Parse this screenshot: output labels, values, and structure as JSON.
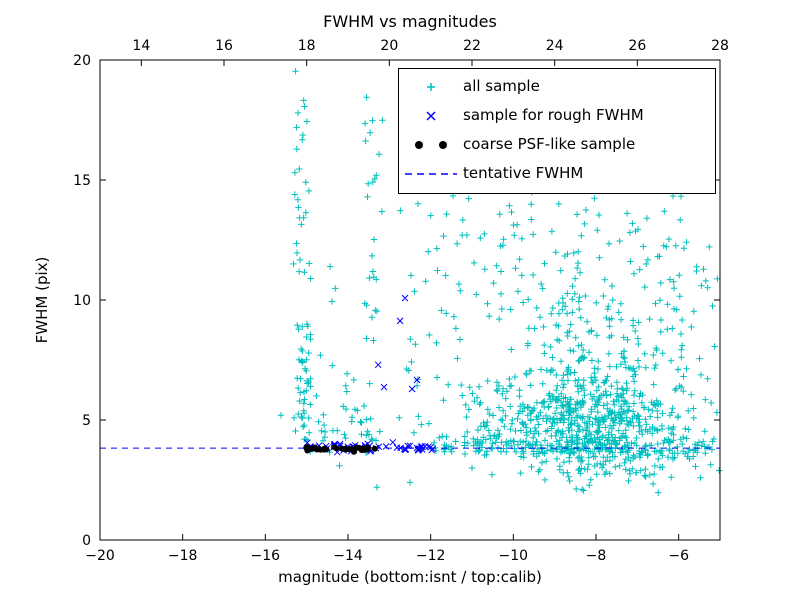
{
  "title": "FWHM vs magnitudes",
  "axes": {
    "xlabel": "magnitude (bottom:isnt / top:calib)",
    "ylabel": "FWHM (pix)",
    "x_bottom": {
      "min": -20,
      "max": -5,
      "ticks": [
        -20,
        -18,
        -16,
        -14,
        -12,
        -10,
        -8,
        -6
      ],
      "labels": [
        "−20",
        "−18",
        "−16",
        "−14",
        "−12",
        "−10",
        "−8",
        "−6"
      ]
    },
    "x_top": {
      "min": 13,
      "max": 28,
      "ticks": [
        14,
        16,
        18,
        20,
        22,
        24,
        26,
        28
      ],
      "labels": [
        "14",
        "16",
        "18",
        "20",
        "22",
        "24",
        "26",
        "28"
      ]
    },
    "y": {
      "min": 0,
      "max": 20,
      "ticks": [
        0,
        5,
        10,
        15,
        20
      ],
      "labels": [
        "0",
        "5",
        "10",
        "15",
        "20"
      ]
    }
  },
  "legend": {
    "entries": [
      {
        "label": "all sample",
        "marker": "plus",
        "color": "#00bfbf"
      },
      {
        "label": "sample for rough FWHM",
        "marker": "x",
        "color": "#0000ff"
      },
      {
        "label": "coarse PSF-like sample",
        "marker": "dot",
        "color": "#000000"
      },
      {
        "label": "tentative FWHM",
        "marker": "dashed-line",
        "color": "#0000ff"
      }
    ]
  },
  "chart_data": {
    "type": "scatter",
    "title": "FWHM vs magnitudes",
    "xlabel": "magnitude (bottom:isnt / top:calib)",
    "ylabel": "FWHM (pix)",
    "xlim_bottom": [
      -20,
      -5
    ],
    "xlim_top": [
      13,
      28
    ],
    "ylim": [
      0,
      20
    ],
    "tentative_fwhm": 3.83,
    "seed": 42,
    "series": [
      {
        "name": "all sample",
        "marker": "plus",
        "color": "#00bfbf",
        "clusters": [
          {
            "dist": "uniform",
            "n": 42,
            "x": [
              -15.32,
              -14.88
            ],
            "y": [
              4.3,
              19.6
            ]
          },
          {
            "dist": "gauss",
            "n": 30,
            "cx": -15.08,
            "sx": 0.1,
            "cy": 7.0,
            "sy": 1.3
          },
          {
            "dist": "uniform",
            "n": 30,
            "x": [
              -13.62,
              -13.15
            ],
            "y": [
              4.3,
              19.3
            ]
          },
          {
            "dist": "band",
            "n": 36,
            "x": [
              -15.1,
              -13.2
            ],
            "cy": 4.7,
            "sy": 0.7
          },
          {
            "dist": "band",
            "n": 55,
            "x": [
              -12.0,
              -9.6
            ],
            "cy": 3.9,
            "sy": 0.18
          },
          {
            "dist": "band",
            "n": 120,
            "x": [
              -9.6,
              -5.1
            ],
            "cy": 3.85,
            "sy": 0.22
          },
          {
            "dist": "gauss",
            "n": 500,
            "cx": -8.2,
            "sx": 1.05,
            "cy": 4.9,
            "sy": 1.05
          },
          {
            "dist": "gauss",
            "n": 170,
            "cx": -8.0,
            "sx": 1.25,
            "cy": 7.6,
            "sy": 1.7
          },
          {
            "dist": "uniform",
            "n": 110,
            "x": [
              -10.8,
              -5.9
            ],
            "y": [
              8.6,
              15.4
            ]
          },
          {
            "dist": "uniform",
            "n": 48,
            "x": [
              -12.8,
              -10.6
            ],
            "y": [
              4.2,
              14.5
            ]
          },
          {
            "dist": "gauss",
            "n": 55,
            "cx": -7.7,
            "sx": 1.2,
            "cy": 2.9,
            "sy": 0.45
          },
          {
            "dist": "uniform",
            "n": 34,
            "x": [
              -6.25,
              -5.05
            ],
            "y": [
              3.0,
              12.5
            ]
          },
          {
            "dist": "uniform",
            "n": 10,
            "x": [
              -9.6,
              -6.2
            ],
            "y": [
              15.4,
              17.3
            ]
          },
          {
            "dist": "uniform",
            "n": 40,
            "x": [
              -11.3,
              -10.0
            ],
            "y": [
              3.4,
              6.5
            ]
          },
          {
            "dist": "uniform",
            "n": 8,
            "x": [
              -14.8,
              -13.7
            ],
            "y": [
              5.0,
              13.0
            ]
          }
        ],
        "points": [
          [
            -15.62,
            5.2
          ],
          [
            -13.3,
            2.2
          ],
          [
            -12.5,
            2.4
          ],
          [
            -11.0,
            3.0
          ]
        ]
      },
      {
        "name": "tentative FWHM",
        "type": "hline",
        "style": "dashed",
        "color": "#0000ff",
        "y": 3.83
      },
      {
        "name": "sample for rough FWHM",
        "marker": "x",
        "color": "#0000ff",
        "clusters": [
          {
            "dist": "band",
            "n": 60,
            "x": [
              -15.0,
              -11.85
            ],
            "cy": 3.85,
            "sy": 0.1
          }
        ],
        "points": [
          [
            -12.62,
            10.08
          ],
          [
            -12.74,
            9.13
          ],
          [
            -13.27,
            7.3
          ],
          [
            -12.33,
            6.67
          ],
          [
            -13.13,
            6.37
          ],
          [
            -12.45,
            6.29
          ]
        ]
      },
      {
        "name": "coarse PSF-like sample",
        "marker": "dot",
        "color": "#000000",
        "clusters": [
          {
            "dist": "band",
            "n": 34,
            "x": [
              -15.02,
              -13.32
            ],
            "cy": 3.8,
            "sy": 0.05
          }
        ],
        "points": []
      }
    ]
  }
}
